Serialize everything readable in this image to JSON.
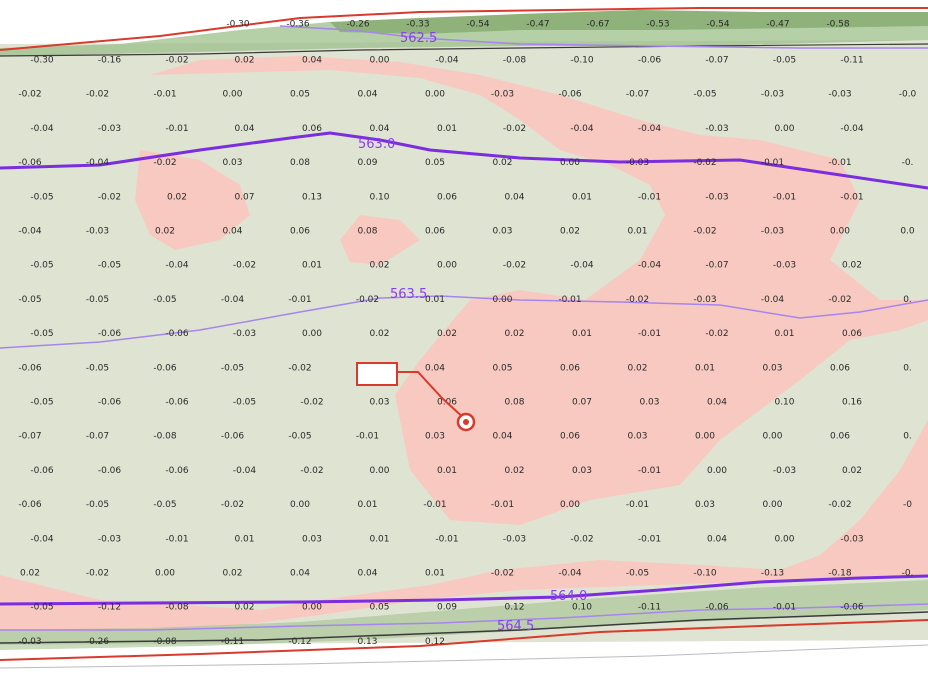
{
  "colors": {
    "cut": "#f8c9c0",
    "fill": "#dfe3d2",
    "contour": "#8a3df0",
    "contour_bold": "#7b2de0",
    "boundary": "#d93a2b",
    "grid_text": "#2a2a2a",
    "marker": "#d93a2b",
    "slope_green": "#7fae6a"
  },
  "contours": {
    "c562_5": "562.5",
    "c563_0": "563.0",
    "c563_5": "563.5",
    "c564_0": "564.0",
    "c564_5": "564.5"
  },
  "marker": {
    "label": "",
    "icon": "target-icon"
  },
  "grid": {
    "top_row": [
      "-0.30",
      "-0.36",
      "-0.26",
      "-0.33",
      "-0.54",
      "-0.47",
      "-0.67",
      "-0.53",
      "-0.54",
      "-0.47",
      "-0.58"
    ],
    "rows": [
      [
        "-0.30",
        "-0.16",
        "-0.02",
        "0.02",
        "0.04",
        "0.00",
        "-0.04",
        "-0.08",
        "-0.10",
        "-0.06",
        "-0.07",
        "-0.05",
        "-0.11"
      ],
      [
        "-0.02",
        "-0.02",
        "-0.01",
        "0.00",
        "0.05",
        "0.04",
        "0.00",
        "-0.03",
        "-0.06",
        "-0.07",
        "-0.05",
        "-0.03",
        "-0.03",
        "-0.0"
      ],
      [
        "-0.04",
        "-0.03",
        "-0.01",
        "0.04",
        "0.06",
        "0.04",
        "0.01",
        "-0.02",
        "-0.04",
        "-0.04",
        "-0.03",
        "0.00",
        "-0.04"
      ],
      [
        "-0.06",
        "-0.04",
        "-0.02",
        "0.03",
        "0.08",
        "0.09",
        "0.05",
        "0.02",
        "0.00",
        "-0.03",
        "-0.02",
        "-0.01",
        "-0.01",
        "-0."
      ],
      [
        "-0.05",
        "-0.02",
        "0.02",
        "0.07",
        "0.13",
        "0.10",
        "0.06",
        "0.04",
        "0.01",
        "-0.01",
        "-0.03",
        "-0.01",
        "-0.01"
      ],
      [
        "-0.04",
        "-0.03",
        "0.02",
        "0.04",
        "0.06",
        "0.08",
        "0.06",
        "0.03",
        "0.02",
        "0.01",
        "-0.02",
        "-0.03",
        "0.00",
        "0.0"
      ],
      [
        "-0.05",
        "-0.05",
        "-0.04",
        "-0.02",
        "0.01",
        "0.02",
        "0.00",
        "-0.02",
        "-0.04",
        "-0.04",
        "-0.07",
        "-0.03",
        "0.02"
      ],
      [
        "-0.05",
        "-0.05",
        "-0.05",
        "-0.04",
        "-0.01",
        "-0.02",
        "0.01",
        "0.00",
        "-0.01",
        "-0.02",
        "-0.03",
        "-0.04",
        "-0.02",
        "0."
      ],
      [
        "-0.05",
        "-0.06",
        "-0.06",
        "-0.03",
        "0.00",
        "0.02",
        "0.02",
        "0.02",
        "0.01",
        "-0.01",
        "-0.02",
        "0.01",
        "0.06"
      ],
      [
        "-0.06",
        "-0.05",
        "-0.06",
        "-0.05",
        "-0.02",
        "",
        "0.04",
        "0.05",
        "0.06",
        "0.02",
        "0.01",
        "0.03",
        "0.06",
        "0."
      ],
      [
        "-0.05",
        "-0.06",
        "-0.06",
        "-0.05",
        "-0.02",
        "0.03",
        "0.06",
        "0.08",
        "0.07",
        "0.03",
        "0.04",
        "0.10",
        "0.16"
      ],
      [
        "-0.07",
        "-0.07",
        "-0.08",
        "-0.06",
        "-0.05",
        "-0.01",
        "0.03",
        "0.04",
        "0.06",
        "0.03",
        "0.00",
        "0.00",
        "0.06",
        "0."
      ],
      [
        "-0.06",
        "-0.06",
        "-0.06",
        "-0.04",
        "-0.02",
        "0.00",
        "0.01",
        "0.02",
        "0.03",
        "-0.01",
        "0.00",
        "-0.03",
        "0.02"
      ],
      [
        "-0.06",
        "-0.05",
        "-0.05",
        "-0.02",
        "0.00",
        "0.01",
        "-0.01",
        "-0.01",
        "0.00",
        "-0.01",
        "0.03",
        "0.00",
        "-0.02",
        "-0"
      ],
      [
        "-0.04",
        "-0.03",
        "-0.01",
        "0.01",
        "0.03",
        "0.01",
        "-0.01",
        "-0.03",
        "-0.02",
        "-0.01",
        "0.04",
        "0.00",
        "-0.03"
      ],
      [
        "0.02",
        "-0.02",
        "0.00",
        "0.02",
        "0.04",
        "0.04",
        "0.01",
        "-0.02",
        "-0.04",
        "-0.05",
        "-0.10",
        "-0.13",
        "-0.18",
        "-0."
      ],
      [
        "-0.05",
        "-0.12",
        "-0.08",
        "0.02",
        "0.00",
        "0.05",
        "0.09",
        "0.12",
        "0.10",
        "-0.11",
        "-0.06",
        "-0.01",
        "-0.06"
      ],
      [
        "-0.03",
        "-0.26",
        "-0.08",
        "-0.11",
        "-0.12",
        "0.13",
        "0.12"
      ]
    ]
  }
}
